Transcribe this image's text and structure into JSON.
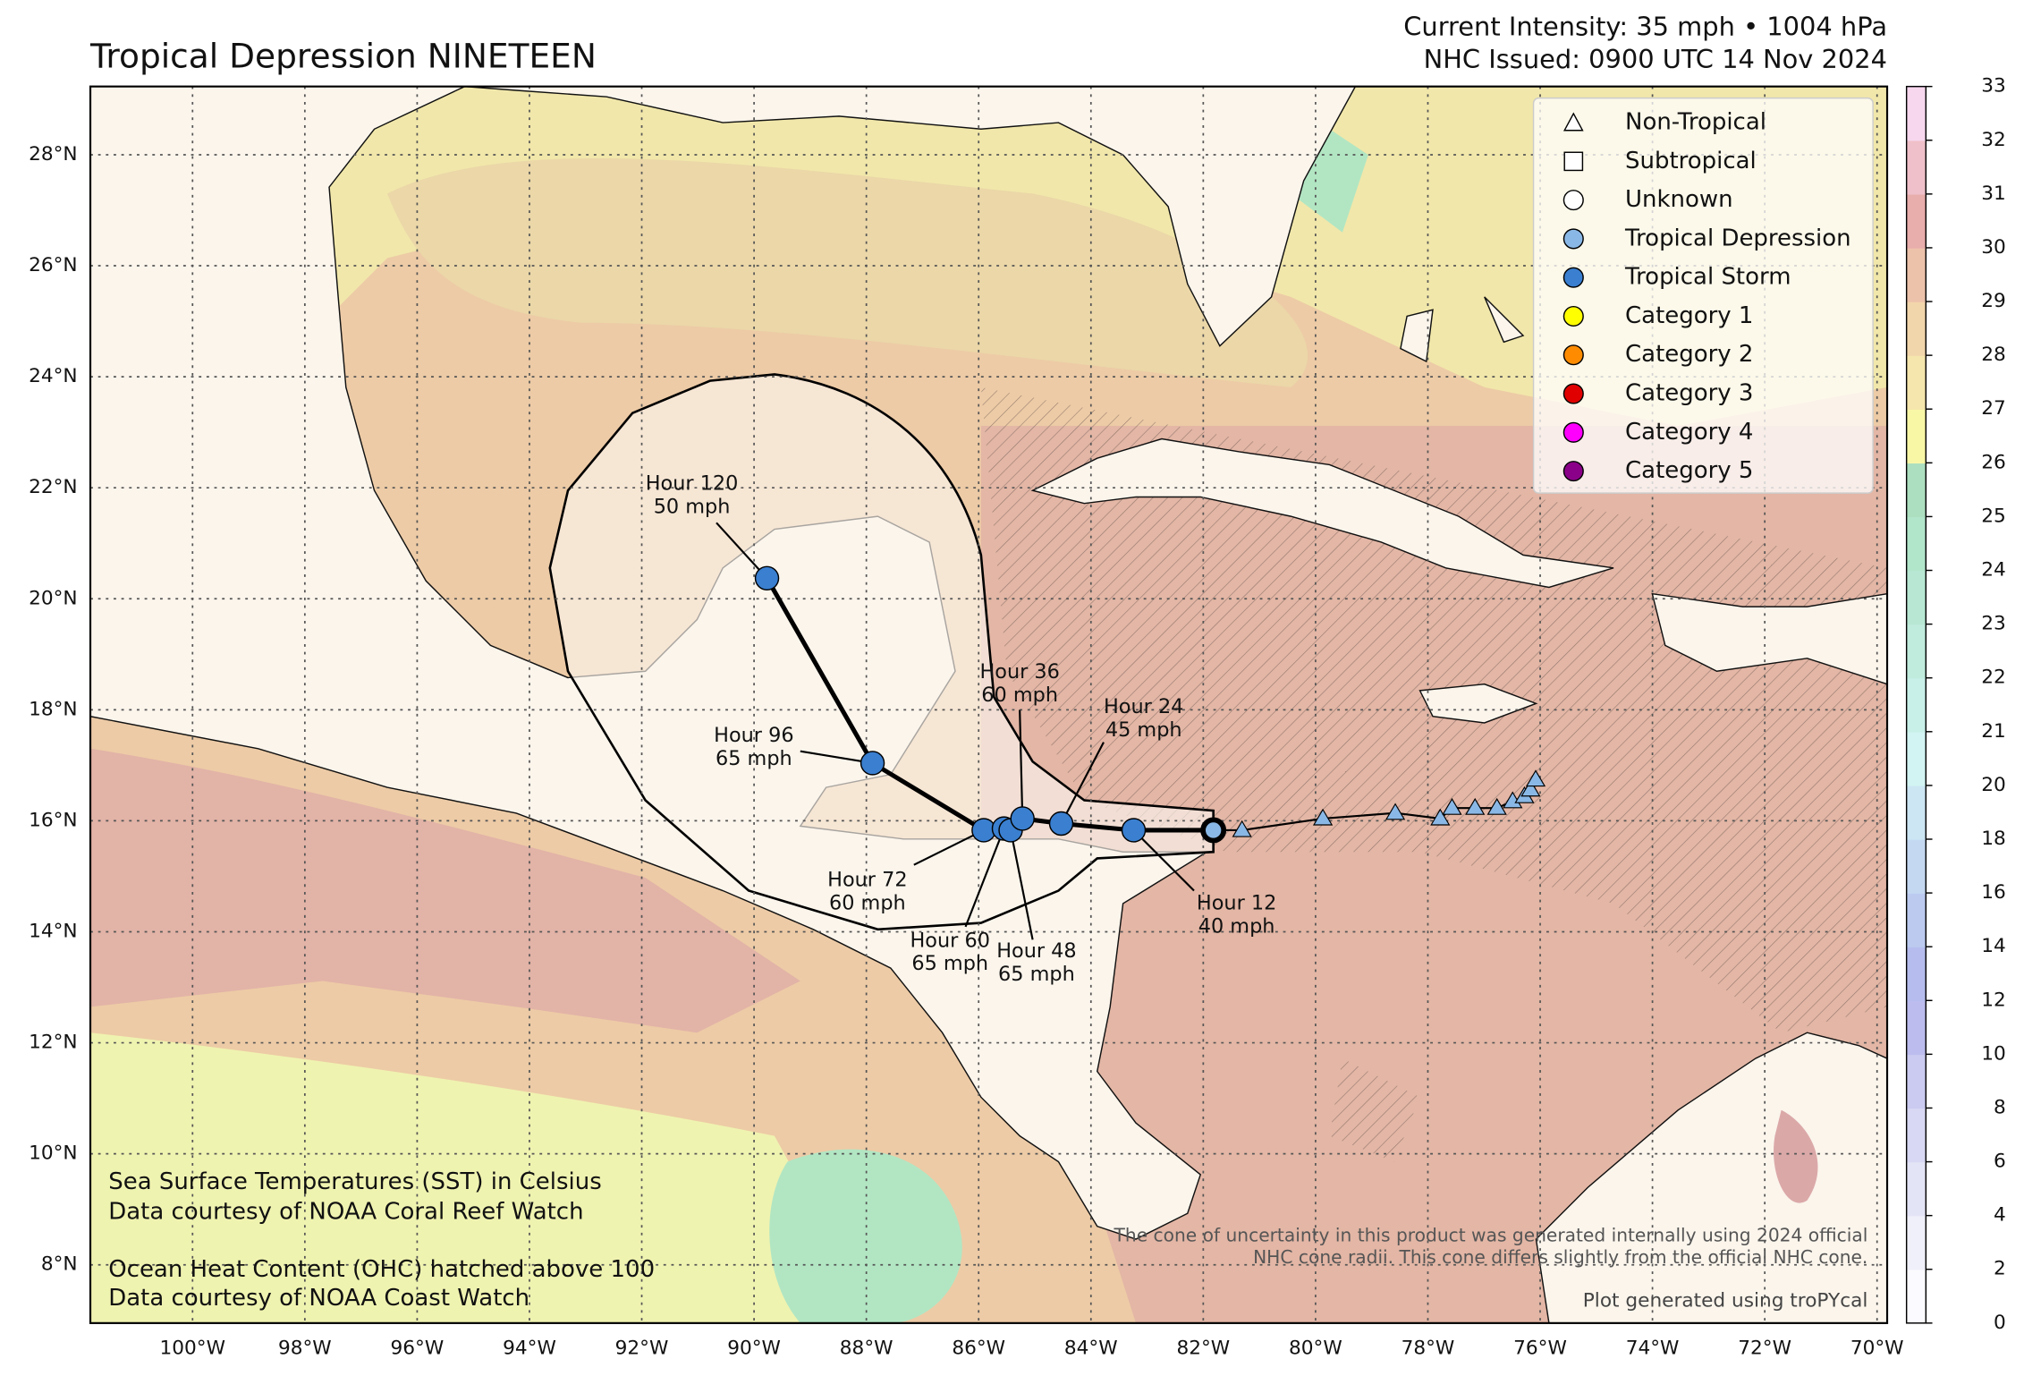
{
  "header": {
    "title": "Tropical Depression NINETEEN",
    "intensity": "Current Intensity: 35 mph • 1004 hPa",
    "issued": "NHC Issued: 0900 UTC 14 Nov 2024"
  },
  "map": {
    "lonlim": [
      -101.82,
      -69.82
    ],
    "latlim": [
      6.95,
      29.23
    ],
    "lon_ticks": [
      {
        "value": -100,
        "label": "100°W"
      },
      {
        "value": -98,
        "label": "98°W"
      },
      {
        "value": -96,
        "label": "96°W"
      },
      {
        "value": -94,
        "label": "94°W"
      },
      {
        "value": -92,
        "label": "92°W"
      },
      {
        "value": -90,
        "label": "90°W"
      },
      {
        "value": -88,
        "label": "88°W"
      },
      {
        "value": -86,
        "label": "86°W"
      },
      {
        "value": -84,
        "label": "84°W"
      },
      {
        "value": -82,
        "label": "82°W"
      },
      {
        "value": -80,
        "label": "80°W"
      },
      {
        "value": -78,
        "label": "78°W"
      },
      {
        "value": -76,
        "label": "76°W"
      },
      {
        "value": -74,
        "label": "74°W"
      },
      {
        "value": -72,
        "label": "72°W"
      },
      {
        "value": -70,
        "label": "70°W"
      }
    ],
    "lat_ticks": [
      {
        "value": 8,
        "label": "8°N"
      },
      {
        "value": 10,
        "label": "10°N"
      },
      {
        "value": 12,
        "label": "12°N"
      },
      {
        "value": 14,
        "label": "14°N"
      },
      {
        "value": 16,
        "label": "16°N"
      },
      {
        "value": 18,
        "label": "18°N"
      },
      {
        "value": 20,
        "label": "20°N"
      },
      {
        "value": 22,
        "label": "22°N"
      },
      {
        "value": 24,
        "label": "24°N"
      },
      {
        "value": 26,
        "label": "26°N"
      },
      {
        "value": 28,
        "label": "28°N"
      }
    ],
    "grid": true
  },
  "past_track": {
    "color": "#8ab8e6",
    "points": [
      {
        "lon": -81.31,
        "lat": 15.83
      },
      {
        "lon": -79.87,
        "lat": 16.04
      },
      {
        "lon": -78.58,
        "lat": 16.14
      },
      {
        "lon": -77.78,
        "lat": 16.04
      },
      {
        "lon": -77.57,
        "lat": 16.23
      },
      {
        "lon": -77.16,
        "lat": 16.23
      },
      {
        "lon": -76.77,
        "lat": 16.23
      },
      {
        "lon": -76.49,
        "lat": 16.35
      },
      {
        "lon": -76.28,
        "lat": 16.44
      },
      {
        "lon": -76.17,
        "lat": 16.56
      },
      {
        "lon": -76.08,
        "lat": 16.74
      }
    ]
  },
  "current": {
    "lon": -81.82,
    "lat": 15.83,
    "color": "#8ab8e6"
  },
  "forecast": [
    {
      "hour": "Hour 12",
      "wind": "40 mph",
      "lon": -83.24,
      "lat": 15.83,
      "color": "#3a7fd0"
    },
    {
      "hour": "Hour 24",
      "wind": "45 mph",
      "lon": -84.53,
      "lat": 15.95,
      "color": "#3a7fd0"
    },
    {
      "hour": "Hour 36",
      "wind": "60 mph",
      "lon": -85.22,
      "lat": 16.04,
      "color": "#3a7fd0"
    },
    {
      "hour": "Hour 48",
      "wind": "65 mph",
      "lon": -85.43,
      "lat": 15.83,
      "color": "#3a7fd0"
    },
    {
      "hour": "Hour 60",
      "wind": "65 mph",
      "lon": -85.55,
      "lat": 15.86,
      "color": "#3a7fd0"
    },
    {
      "hour": "Hour 72",
      "wind": "60 mph",
      "lon": -85.91,
      "lat": 15.83,
      "color": "#3a7fd0"
    },
    {
      "hour": "Hour 96",
      "wind": "65 mph",
      "lon": -87.89,
      "lat": 17.04,
      "color": "#3a7fd0"
    },
    {
      "hour": "Hour 120",
      "wind": "50 mph",
      "lon": -89.77,
      "lat": 20.37,
      "color": "#3a7fd0"
    }
  ],
  "legend": [
    {
      "label": "Non-Tropical",
      "marker": "triangle",
      "color": "#ffffff"
    },
    {
      "label": "Subtropical",
      "marker": "square",
      "color": "#ffffff"
    },
    {
      "label": "Unknown",
      "marker": "circle",
      "color": "#ffffff"
    },
    {
      "label": "Tropical Depression",
      "marker": "circle",
      "color": "#8ab8e6"
    },
    {
      "label": "Tropical Storm",
      "marker": "circle",
      "color": "#3a7fd0"
    },
    {
      "label": "Category 1",
      "marker": "circle",
      "color": "#ffff00"
    },
    {
      "label": "Category 2",
      "marker": "circle",
      "color": "#ff8c00"
    },
    {
      "label": "Category 3",
      "marker": "circle",
      "color": "#e00000"
    },
    {
      "label": "Category 4",
      "marker": "circle",
      "color": "#ff00ff"
    },
    {
      "label": "Category 5",
      "marker": "circle",
      "color": "#8b0088"
    }
  ],
  "colorbar": {
    "ticks": [
      0,
      2,
      4,
      6,
      8,
      10,
      12,
      14,
      16,
      18,
      20,
      21,
      22,
      23,
      24,
      25,
      26,
      27,
      28,
      29,
      30,
      31,
      32,
      33
    ],
    "colors": [
      "#fbfbff",
      "#f0f0fa",
      "#e4e4f7",
      "#d8d8f4",
      "#cbcbf1",
      "#bcbcef",
      "#b6bdee",
      "#bccaf0",
      "#c4d8f2",
      "#cce6f4",
      "#d2f4f2",
      "#c8f0e8",
      "#c0ecde",
      "#b8e8d4",
      "#b2e6cb",
      "#acdfbf",
      "#f8f7a6",
      "#f5e6ad",
      "#f2d6ab",
      "#edc2ab",
      "#e8aeab",
      "#efc0c9",
      "#f7d7ee"
    ]
  },
  "notes": {
    "sst": "Sea Surface Temperatures (SST) in Celsius",
    "sst_source": "Data courtesy of NOAA Coral Reef Watch",
    "ohc": "Ocean Heat Content (OHC) hatched above 100",
    "ohc_source": "Data courtesy of NOAA Coast Watch",
    "cone_1": "The cone of uncertainty in this product was generated internally using 2024 official",
    "cone_2": "NHC cone radii. This cone differs slightly from the official NHC cone.",
    "credit": "Plot generated using troPYcal"
  }
}
